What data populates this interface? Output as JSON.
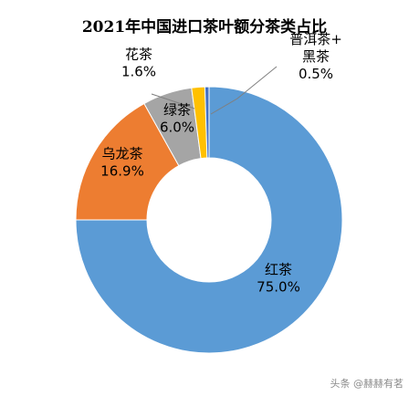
{
  "chart_data": {
    "type": "pie",
    "variant": "donut",
    "title": "2021年中国进口茶叶额分茶类占比",
    "slices": [
      {
        "label": "红茶",
        "value": 75.0,
        "value_label": "75.0%",
        "color": "#5b9bd5"
      },
      {
        "label": "乌龙茶",
        "value": 16.9,
        "value_label": "16.9%",
        "color": "#ed7d31"
      },
      {
        "label": "绿茶",
        "value": 6.0,
        "value_label": "6.0%",
        "color": "#a5a5a5"
      },
      {
        "label": "花茶",
        "value": 1.6,
        "value_label": "1.6%",
        "color": "#ffc000"
      },
      {
        "label": "普洱茶+黑茶",
        "value": 0.5,
        "value_label": "0.5%",
        "color": "#4472c4"
      }
    ],
    "label_lines": {
      "普洱茶+黑茶": [
        "普洱茶+",
        "黑茶"
      ]
    },
    "legend": "none"
  },
  "watermark": "头条 @赫赫有茗"
}
